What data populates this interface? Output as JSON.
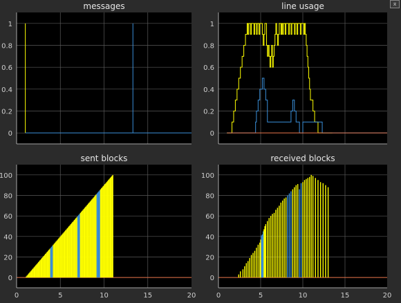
{
  "window": {
    "dock_icon": "undock-icon",
    "background": "#2b2b2b"
  },
  "colors": {
    "plot_bg": "#000000",
    "grid": "#5a5a5a",
    "axis": "#cfcfcf",
    "yellow": "#ffff00",
    "blue": "#3a8fd9",
    "orange": "#e8734a"
  },
  "chart_data": [
    {
      "type": "line",
      "title": "messages",
      "xlim": [
        0,
        20
      ],
      "ylim": [
        -0.1,
        1.1
      ],
      "xticks": [],
      "yticks": [
        "0",
        "0.2",
        "0.4",
        "0.6",
        "0.8",
        "1"
      ],
      "yticks_values": [
        0,
        0.2,
        0.4,
        0.6,
        0.8,
        1
      ],
      "grid": true,
      "series": [
        {
          "color": "yellow",
          "x": [
            1,
            1,
            1
          ],
          "y": [
            0,
            1,
            0
          ]
        },
        {
          "color": "blue",
          "x": [
            1,
            13.3,
            13.3,
            13.3,
            20
          ],
          "y": [
            0,
            0,
            1,
            0,
            0
          ]
        }
      ]
    },
    {
      "type": "line",
      "title": "line usage",
      "xlim": [
        0,
        20
      ],
      "ylim": [
        -0.1,
        1.1
      ],
      "xticks": [],
      "yticks": [
        "0",
        "0.2",
        "0.4",
        "0.6",
        "0.8",
        "1"
      ],
      "yticks_values": [
        0,
        0.2,
        0.4,
        0.6,
        0.8,
        1
      ],
      "grid": true,
      "series": [
        {
          "color": "yellow",
          "step": true,
          "x": [
            1,
            1.4,
            1.6,
            1.8,
            2,
            2.2,
            2.4,
            2.6,
            2.8,
            3,
            3.1,
            3.2,
            3.3,
            3.4,
            3.5,
            3.6,
            3.7,
            3.8,
            3.9,
            4,
            4.1,
            4.2,
            4.3,
            4.4,
            4.5,
            4.6,
            4.7,
            4.8,
            4.9,
            5,
            5.1,
            5.2,
            5.3,
            5.4,
            5.5,
            5.6,
            5.7,
            5.8,
            5.9,
            6,
            6.1,
            6.2,
            6.3,
            6.4,
            6.5,
            6.6,
            6.7,
            6.8,
            6.9,
            7,
            7.1,
            7.2,
            7.3,
            7.4,
            7.5,
            7.6,
            7.7,
            7.8,
            7.9,
            8,
            8.1,
            8.2,
            8.3,
            8.4,
            8.5,
            8.6,
            8.7,
            8.8,
            8.9,
            9,
            9.1,
            9.2,
            9.3,
            9.4,
            9.5,
            9.6,
            9.7,
            9.8,
            9.9,
            10,
            10.1,
            10.2,
            10.3,
            10.4,
            10.5,
            10.6,
            10.7,
            10.8,
            10.9,
            11,
            11.2,
            11.4,
            11.6,
            11.8,
            12,
            12.2,
            12.4,
            12.6,
            12.8,
            13,
            13.2,
            13.5
          ],
          "y": [
            0,
            0,
            0.1,
            0.2,
            0.3,
            0.4,
            0.5,
            0.6,
            0.7,
            0.8,
            0.8,
            0.9,
            0.9,
            1,
            0.9,
            1,
            1,
            0.9,
            1,
            1,
            1,
            0.9,
            1,
            1,
            0.9,
            1,
            1,
            0.9,
            1,
            1,
            1,
            0.9,
            0.8,
            0.9,
            1,
            1,
            0.8,
            0.7,
            0.8,
            0.7,
            0.6,
            0.7,
            0.8,
            0.6,
            0.7,
            0.8,
            0.9,
            1,
            0.9,
            0.8,
            0.9,
            1,
            1,
            0.9,
            1,
            0.9,
            1,
            1,
            0.9,
            1,
            1,
            1,
            0.9,
            1,
            1,
            0.9,
            1,
            1,
            1,
            0.9,
            1,
            1,
            0.9,
            1,
            1,
            1,
            0.9,
            1,
            1,
            1,
            0.9,
            1,
            0.9,
            0.8,
            0.7,
            0.6,
            0.5,
            0.4,
            0.3,
            0.3,
            0.2,
            0.1,
            0.1,
            0,
            0,
            0,
            0,
            0,
            0,
            0,
            0,
            0
          ]
        },
        {
          "color": "blue",
          "step": true,
          "x": [
            1,
            4.4,
            4.5,
            4.7,
            4.9,
            5.2,
            5.4,
            5.6,
            5.8,
            8.4,
            8.6,
            8.8,
            9,
            9.2,
            9.6,
            10,
            12.3,
            12.3,
            20
          ],
          "y": [
            0,
            0.1,
            0.2,
            0.3,
            0.4,
            0.5,
            0.4,
            0.3,
            0.1,
            0.1,
            0.2,
            0.3,
            0.2,
            0.1,
            0,
            0.1,
            0.1,
            0,
            0
          ]
        },
        {
          "color": "orange",
          "step": false,
          "x": [
            1,
            20
          ],
          "y": [
            0,
            0
          ]
        }
      ]
    },
    {
      "type": "bar",
      "title": "sent blocks",
      "xlim": [
        0,
        20
      ],
      "ylim": [
        -10,
        110
      ],
      "xticks": [
        "0",
        "5",
        "10",
        "15",
        "20"
      ],
      "xticks_values": [
        0,
        5,
        10,
        15,
        20
      ],
      "yticks": [
        "0",
        "20",
        "40",
        "60",
        "80",
        "100"
      ],
      "yticks_values": [
        0,
        20,
        40,
        60,
        80,
        100
      ],
      "grid": true,
      "baseline": {
        "color": "orange",
        "y": 0
      },
      "bar_shape": "ramp",
      "x_start": 1,
      "x_end": 11,
      "count": 100,
      "highlight_blue": [
        29,
        30,
        31,
        60,
        61,
        62,
        82,
        83,
        84,
        85
      ]
    },
    {
      "type": "bar",
      "title": "received blocks",
      "xlim": [
        0,
        20
      ],
      "ylim": [
        -10,
        110
      ],
      "xticks": [
        "0",
        "5",
        "10",
        "15",
        "20"
      ],
      "xticks_values": [
        0,
        5,
        10,
        15,
        20
      ],
      "yticks": [
        "0",
        "20",
        "40",
        "60",
        "80",
        "100"
      ],
      "yticks_values": [
        0,
        20,
        40,
        60,
        80,
        100
      ],
      "grid": true,
      "baseline": {
        "color": "orange",
        "y": 0
      },
      "bars": [
        {
          "x": 2.4,
          "y": 3
        },
        {
          "x": 2.6,
          "y": 6
        },
        {
          "x": 2.9,
          "y": 8
        },
        {
          "x": 3.1,
          "y": 11
        },
        {
          "x": 3.3,
          "y": 14
        },
        {
          "x": 3.5,
          "y": 16
        },
        {
          "x": 3.7,
          "y": 19
        },
        {
          "x": 3.9,
          "y": 22
        },
        {
          "x": 4.1,
          "y": 24
        },
        {
          "x": 4.3,
          "y": 26
        },
        {
          "x": 4.5,
          "y": 29
        },
        {
          "x": 4.7,
          "y": 32
        },
        {
          "x": 4.9,
          "y": 34
        },
        {
          "x": 5.0,
          "y": 37
        },
        {
          "x": 5.1,
          "y": 41,
          "c": "blue"
        },
        {
          "x": 5.2,
          "y": 42,
          "c": "blue"
        },
        {
          "x": 5.3,
          "y": 45,
          "c": "blue"
        },
        {
          "x": 5.4,
          "y": 47
        },
        {
          "x": 5.5,
          "y": 50
        },
        {
          "x": 5.6,
          "y": 52
        },
        {
          "x": 5.8,
          "y": 55
        },
        {
          "x": 6.0,
          "y": 58
        },
        {
          "x": 6.2,
          "y": 60
        },
        {
          "x": 6.4,
          "y": 62
        },
        {
          "x": 6.6,
          "y": 63
        },
        {
          "x": 6.8,
          "y": 66
        },
        {
          "x": 7.0,
          "y": 68
        },
        {
          "x": 7.2,
          "y": 70
        },
        {
          "x": 7.4,
          "y": 73
        },
        {
          "x": 7.6,
          "y": 75
        },
        {
          "x": 7.8,
          "y": 77
        },
        {
          "x": 8.0,
          "y": 78
        },
        {
          "x": 8.2,
          "y": 80,
          "c": "blue"
        },
        {
          "x": 8.4,
          "y": 82,
          "c": "blue"
        },
        {
          "x": 8.6,
          "y": 84,
          "c": "blue"
        },
        {
          "x": 8.8,
          "y": 86
        },
        {
          "x": 9.0,
          "y": 88
        },
        {
          "x": 9.2,
          "y": 90
        },
        {
          "x": 9.4,
          "y": 91
        },
        {
          "x": 9.6,
          "y": 86,
          "c": "blue"
        },
        {
          "x": 9.8,
          "y": 92,
          "c": "blue"
        },
        {
          "x": 10.0,
          "y": 93
        },
        {
          "x": 10.2,
          "y": 95
        },
        {
          "x": 10.4,
          "y": 96
        },
        {
          "x": 10.6,
          "y": 97
        },
        {
          "x": 10.8,
          "y": 98
        },
        {
          "x": 11.0,
          "y": 100
        },
        {
          "x": 11.2,
          "y": 99
        },
        {
          "x": 11.5,
          "y": 97
        },
        {
          "x": 11.8,
          "y": 95
        },
        {
          "x": 12.1,
          "y": 93
        },
        {
          "x": 12.4,
          "y": 92
        },
        {
          "x": 12.7,
          "y": 90
        },
        {
          "x": 13.0,
          "y": 88
        }
      ]
    }
  ]
}
